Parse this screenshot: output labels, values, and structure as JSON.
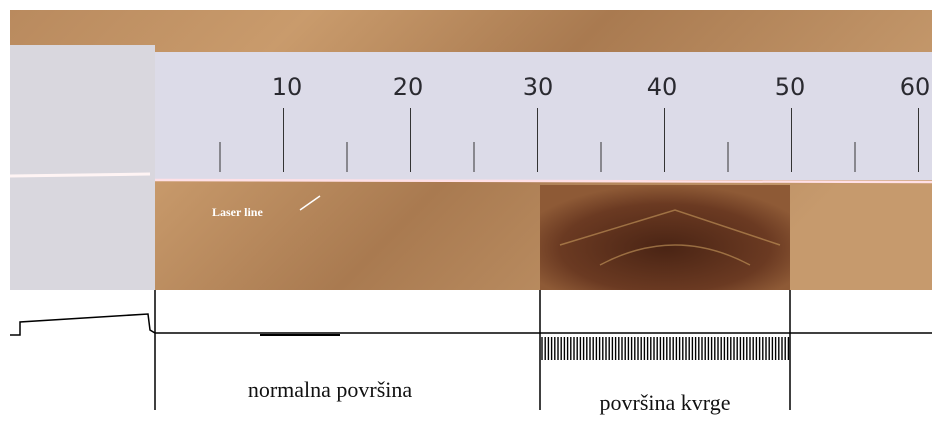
{
  "ruler": {
    "labels": [
      "10",
      "20",
      "30",
      "40",
      "50",
      "60"
    ]
  },
  "annotation": "Laser line",
  "regions": [
    "normalna površina",
    "površina kvrge"
  ]
}
